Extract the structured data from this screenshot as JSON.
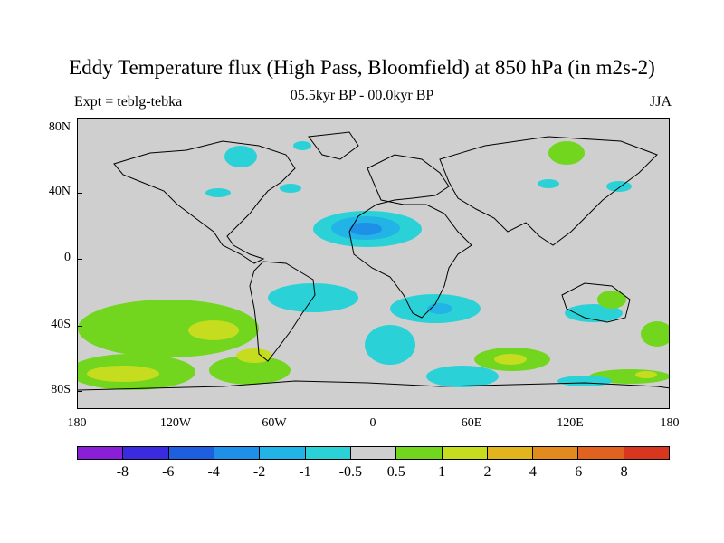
{
  "title": "Eddy Temperature flux (High Pass, Bloomfield) at 850 hPa (in m2s-2)",
  "left_label": "Expt = teblg-tebka",
  "center_label": "05.5kyr BP - 00.0kyr BP",
  "right_label": "JJA",
  "lat_labels": [
    "80N",
    "40N",
    "0",
    "40S",
    "80S"
  ],
  "lon_labels": [
    "180",
    "120W",
    "60W",
    "0",
    "60E",
    "120E",
    "180"
  ],
  "colorbar": {
    "colors": [
      "#8a1fd8",
      "#3b2be0",
      "#1e5fe0",
      "#1e90e8",
      "#22b4e6",
      "#2ad2d8",
      "#cfcfcf",
      "#72d61e",
      "#c6dc1e",
      "#e2b41e",
      "#e28a1e",
      "#e0621e",
      "#d8361e"
    ],
    "labels": [
      "-8",
      "-6",
      "-4",
      "-2",
      "-1",
      "-0.5",
      "0.5",
      "1",
      "2",
      "4",
      "6",
      "8"
    ]
  },
  "map_data": {
    "projection": "cylindrical-equidistant",
    "field": "eddy temperature flux difference",
    "anomaly_regions": [
      {
        "name": "north-africa-negative",
        "level": "-4"
      },
      {
        "name": "hudson-bay-negative",
        "level": "-1"
      },
      {
        "name": "south-pacific-positive",
        "level": "2"
      },
      {
        "name": "south-atlantic-negative",
        "level": "-1"
      },
      {
        "name": "southern-indian-positive",
        "level": "2"
      },
      {
        "name": "australia-negative",
        "level": "-1"
      }
    ]
  }
}
